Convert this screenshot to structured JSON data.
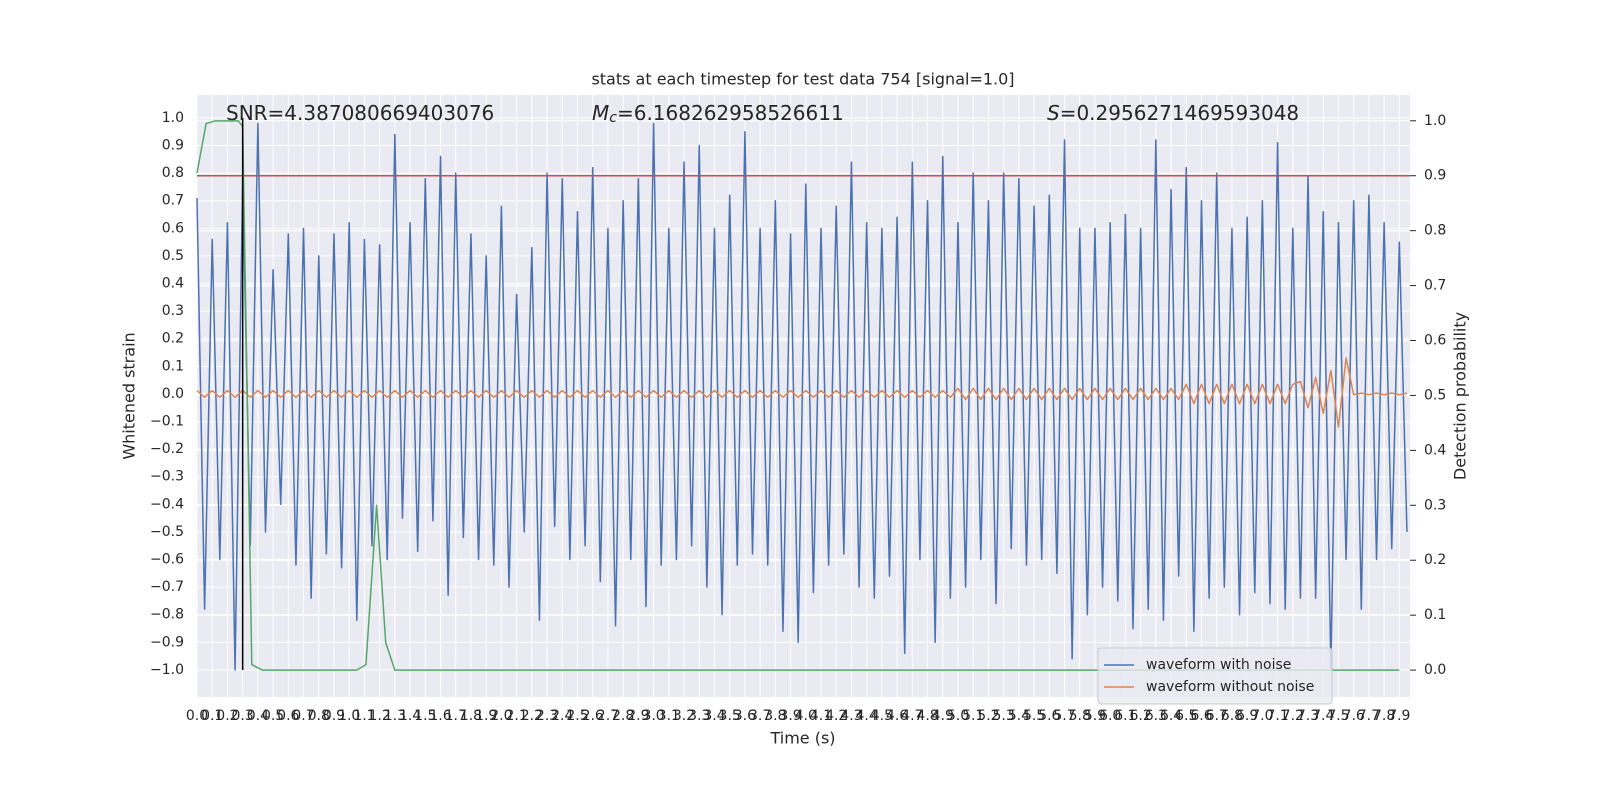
{
  "chart_data": {
    "type": "line",
    "title": "stats at each timestep for test data 754 [signal=1.0]",
    "x_label": "Time (s)",
    "y_label": "Whitened strain",
    "y2_label": "Detection probability",
    "annotations": [
      {
        "text": "SNR=4.387080669403076"
      },
      {
        "symbol": "M",
        "subscript": "c",
        "text": "=6.168262958526611"
      },
      {
        "symbol": "S",
        "text": "=0.2956271469593048"
      }
    ],
    "x": [
      0,
      0.05,
      0.1,
      0.15,
      0.2,
      0.25,
      0.3,
      0.35,
      0.4,
      0.45,
      0.5,
      0.55,
      0.6,
      0.65,
      0.7,
      0.75,
      0.8,
      0.85,
      0.9,
      0.95,
      1,
      1.05,
      1.1,
      1.15,
      1.2,
      1.25,
      1.3,
      1.35,
      1.4,
      1.45,
      1.5,
      1.55,
      1.6,
      1.65,
      1.7,
      1.75,
      1.8,
      1.85,
      1.9,
      1.95,
      2,
      2.05,
      2.1,
      2.15,
      2.2,
      2.25,
      2.3,
      2.35,
      2.4,
      2.45,
      2.5,
      2.55,
      2.6,
      2.65,
      2.7,
      2.75,
      2.8,
      2.85,
      2.9,
      2.95,
      3,
      3.05,
      3.1,
      3.15,
      3.2,
      3.25,
      3.3,
      3.35,
      3.4,
      3.45,
      3.5,
      3.55,
      3.6,
      3.65,
      3.7,
      3.75,
      3.8,
      3.85,
      3.9,
      3.95,
      4,
      4.05,
      4.1,
      4.15,
      4.2,
      4.25,
      4.3,
      4.35,
      4.4,
      4.45,
      4.5,
      4.55,
      4.6,
      4.65,
      4.7,
      4.75,
      4.8,
      4.85,
      4.9,
      4.95,
      5,
      5.05,
      5.1,
      5.15,
      5.2,
      5.25,
      5.3,
      5.35,
      5.4,
      5.45,
      5.5,
      5.55,
      5.6,
      5.65,
      5.7,
      5.75,
      5.8,
      5.85,
      5.9,
      5.95,
      6,
      6.05,
      6.1,
      6.15,
      6.2,
      6.25,
      6.3,
      6.35,
      6.4,
      6.45,
      6.5,
      6.55,
      6.6,
      6.65,
      6.7,
      6.75,
      6.8,
      6.85,
      6.9,
      6.95,
      7,
      7.05,
      7.1,
      7.15,
      7.2,
      7.25,
      7.3,
      7.35,
      7.4,
      7.45,
      7.5,
      7.55,
      7.6,
      7.65,
      7.7,
      7.75,
      7.8,
      7.85,
      7.9,
      7.95
    ],
    "series": [
      {
        "name": "waveform with noise",
        "color": "#4c72b0",
        "values": [
          0.71,
          -0.78,
          0.56,
          -0.6,
          0.62,
          -1.0,
          0.78,
          -0.55,
          0.98,
          -0.5,
          0.45,
          -0.4,
          0.58,
          -0.62,
          0.6,
          -0.74,
          0.5,
          -0.58,
          0.58,
          -0.63,
          0.62,
          -0.82,
          0.56,
          -0.55,
          0.54,
          -0.6,
          0.94,
          -0.45,
          0.62,
          -0.57,
          0.78,
          -0.46,
          0.86,
          -0.73,
          0.8,
          -0.52,
          0.58,
          -0.6,
          0.5,
          -0.62,
          0.68,
          -0.7,
          0.36,
          -0.5,
          0.53,
          -0.82,
          0.8,
          -0.48,
          0.78,
          -0.6,
          0.66,
          -0.55,
          0.82,
          -0.68,
          0.6,
          -0.84,
          0.7,
          -0.6,
          0.78,
          -0.77,
          0.98,
          -0.62,
          0.6,
          -0.6,
          0.84,
          -0.55,
          0.9,
          -0.7,
          0.6,
          -0.8,
          0.72,
          -0.62,
          0.95,
          -0.58,
          0.6,
          -0.62,
          0.7,
          -0.86,
          0.58,
          -0.9,
          0.76,
          -0.72,
          0.6,
          -0.62,
          0.68,
          -0.58,
          0.84,
          -0.7,
          0.62,
          -0.74,
          0.6,
          -0.66,
          0.64,
          -0.94,
          0.84,
          -0.6,
          0.7,
          -0.9,
          0.86,
          -0.74,
          0.62,
          -0.7,
          0.8,
          -0.6,
          0.7,
          -0.76,
          0.8,
          -0.56,
          0.78,
          -0.62,
          0.68,
          -0.6,
          0.72,
          -0.65,
          0.92,
          -0.96,
          0.6,
          -0.8,
          0.6,
          -0.7,
          0.62,
          -0.75,
          0.65,
          -0.85,
          0.6,
          -0.78,
          0.92,
          -0.82,
          0.74,
          -0.66,
          0.82,
          -0.86,
          0.7,
          -0.74,
          0.8,
          -0.7,
          0.6,
          -0.8,
          0.64,
          -0.72,
          0.7,
          -0.76,
          0.91,
          -0.78,
          0.6,
          -0.74,
          0.79,
          -0.74,
          0.66,
          -1.0,
          0.62,
          -0.6,
          0.7,
          -0.78,
          0.72,
          -0.6,
          0.62,
          -0.56,
          0.55,
          -0.5
        ]
      },
      {
        "name": "waveform without noise",
        "color": "#dd8452",
        "values": [
          0.012,
          -0.012,
          0.012,
          -0.012,
          0.012,
          -0.012,
          0.012,
          -0.012,
          0.012,
          -0.012,
          0.012,
          -0.012,
          0.012,
          -0.012,
          0.012,
          -0.012,
          0.012,
          -0.012,
          0.012,
          -0.012,
          0.012,
          -0.012,
          0.012,
          -0.012,
          0.012,
          -0.012,
          0.012,
          -0.012,
          0.012,
          -0.012,
          0.012,
          -0.012,
          0.012,
          -0.012,
          0.012,
          -0.012,
          0.012,
          -0.012,
          0.012,
          -0.012,
          0.012,
          -0.012,
          0.012,
          -0.012,
          0.012,
          -0.012,
          0.012,
          -0.012,
          0.012,
          -0.012,
          0.012,
          -0.012,
          0.012,
          -0.012,
          0.012,
          -0.012,
          0.012,
          -0.012,
          0.012,
          -0.012,
          0.012,
          -0.012,
          0.012,
          -0.012,
          0.012,
          -0.012,
          0.012,
          -0.012,
          0.012,
          -0.012,
          0.012,
          -0.012,
          0.012,
          -0.012,
          0.012,
          -0.012,
          0.012,
          -0.012,
          0.012,
          -0.012,
          0.012,
          -0.012,
          0.012,
          -0.012,
          0.012,
          -0.012,
          0.012,
          -0.012,
          0.012,
          -0.012,
          0.012,
          -0.012,
          0.012,
          -0.012,
          0.012,
          -0.012,
          0.012,
          -0.012,
          0.012,
          -0.012,
          0.02,
          -0.02,
          0.02,
          -0.02,
          0.02,
          -0.02,
          0.02,
          -0.02,
          0.02,
          -0.02,
          0.02,
          -0.02,
          0.02,
          -0.02,
          0.02,
          -0.02,
          0.02,
          -0.02,
          0.02,
          -0.02,
          0.02,
          -0.02,
          0.02,
          -0.02,
          0.02,
          -0.02,
          0.02,
          -0.02,
          0.02,
          -0.02,
          0.035,
          -0.035,
          0.035,
          -0.035,
          0.035,
          -0.035,
          0.035,
          -0.035,
          0.035,
          -0.035,
          0.035,
          -0.035,
          0.035,
          -0.035,
          0.035,
          0.045,
          -0.05,
          0.06,
          -0.07,
          0.085,
          -0.12,
          0.13,
          -0.003,
          0.003,
          -0.003,
          0.003,
          -0.003,
          0.003,
          -0.003,
          0.003
        ]
      },
      {
        "color": "#55a868",
        "axis": "y2",
        "x": [
          0,
          0.06,
          0.12,
          0.2,
          0.27,
          0.3,
          0.33,
          0.36,
          0.43,
          1.05,
          1.11,
          1.18,
          1.24,
          1.3,
          7.9
        ],
        "values": [
          0.905,
          0.995,
          1.0,
          1.0,
          1.0,
          0.99,
          0.5,
          0.01,
          0.0,
          0.0,
          0.01,
          0.3,
          0.05,
          0.0,
          0.0
        ]
      }
    ],
    "threshold": {
      "y2": 0.9,
      "color": "#c44e52"
    },
    "marker": {
      "x": 0.3,
      "y": [
        -1,
        1
      ],
      "color": "#000000"
    },
    "xlim": [
      0,
      7.97
    ],
    "ylim": [
      -1.098,
      1.083
    ],
    "y2lim": [
      -0.049,
      1.047
    ],
    "xticks": [
      {
        "value": 0,
        "label": "0.0"
      },
      0.1,
      0.2,
      0.3,
      0.4,
      0.5,
      0.6,
      0.7,
      0.8,
      0.9,
      {
        "value": 1,
        "label": "1.0"
      },
      1.1,
      1.2,
      1.3,
      1.4,
      1.5,
      1.6,
      1.7,
      1.8,
      1.9,
      {
        "value": 2,
        "label": "2.0"
      },
      2.1,
      2.2,
      2.3,
      2.4,
      2.5,
      2.6,
      2.7,
      2.8,
      2.9,
      {
        "value": 3,
        "label": "3.0"
      },
      3.1,
      3.2,
      3.3,
      3.4,
      3.5,
      3.6,
      3.7,
      3.8,
      3.9,
      {
        "value": 4,
        "label": "4.0"
      },
      4.1,
      4.2,
      4.3,
      4.4,
      4.5,
      4.6,
      4.7,
      4.8,
      4.9,
      {
        "value": 5,
        "label": "5.0"
      },
      5.1,
      5.2,
      5.3,
      5.4,
      5.5,
      5.6,
      5.7,
      5.8,
      5.9,
      {
        "value": 6,
        "label": "6.0"
      },
      6.1,
      6.2,
      6.3,
      6.4,
      6.5,
      6.6,
      6.7,
      6.8,
      6.9,
      {
        "value": 7,
        "label": "7.0"
      },
      7.1,
      7.2,
      7.3,
      7.4,
      7.5,
      7.6,
      7.7,
      7.8,
      7.9
    ],
    "yticks": [
      {
        "value": -1,
        "label": "−1.0"
      },
      {
        "value": -0.9,
        "label": "−0.9"
      },
      {
        "value": -0.8,
        "label": "−0.8"
      },
      {
        "value": -0.7,
        "label": "−0.7"
      },
      {
        "value": -0.6,
        "label": "−0.6"
      },
      {
        "value": -0.5,
        "label": "−0.5"
      },
      {
        "value": -0.4,
        "label": "−0.4"
      },
      {
        "value": -0.3,
        "label": "−0.3"
      },
      {
        "value": -0.2,
        "label": "−0.2"
      },
      {
        "value": -0.1,
        "label": "−0.1"
      },
      {
        "value": 0,
        "label": "0.0"
      },
      0.1,
      0.2,
      0.3,
      0.4,
      0.5,
      0.6,
      0.7,
      0.8,
      0.9,
      {
        "value": 1,
        "label": "1.0"
      }
    ],
    "y2ticks": [
      {
        "value": 0,
        "label": "0.0"
      },
      0.1,
      0.2,
      0.3,
      0.4,
      0.5,
      0.6,
      0.7,
      0.8,
      0.9,
      {
        "value": 1,
        "label": "1.0"
      }
    ],
    "grid": true,
    "legend": "lower right"
  }
}
